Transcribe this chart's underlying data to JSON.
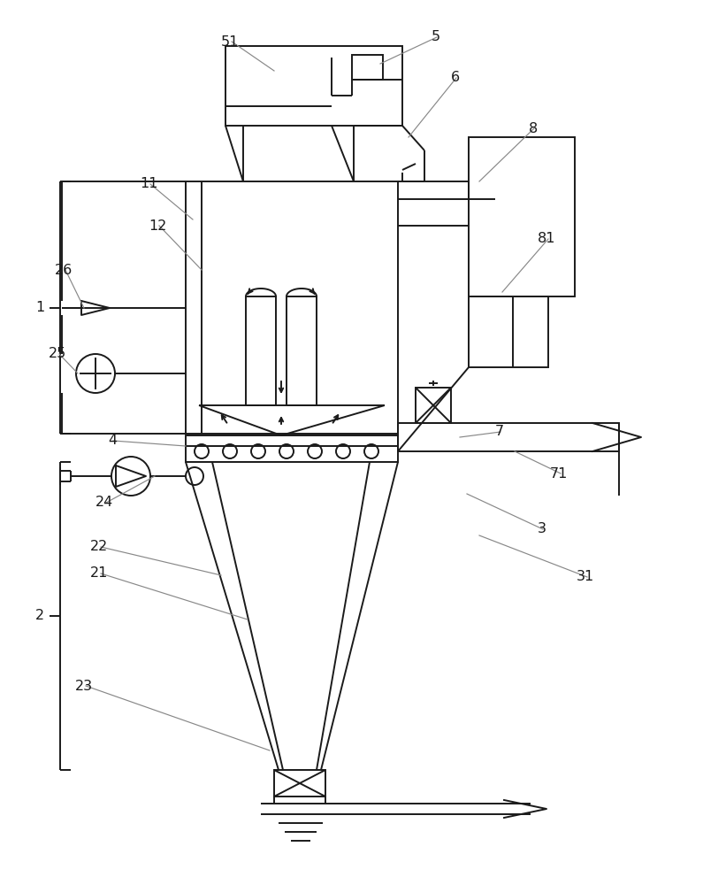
{
  "bg_color": "#ffffff",
  "lc": "#1a1a1a",
  "ac": "#888888",
  "lw": 1.4,
  "alw": 0.85,
  "fs": 11.5
}
